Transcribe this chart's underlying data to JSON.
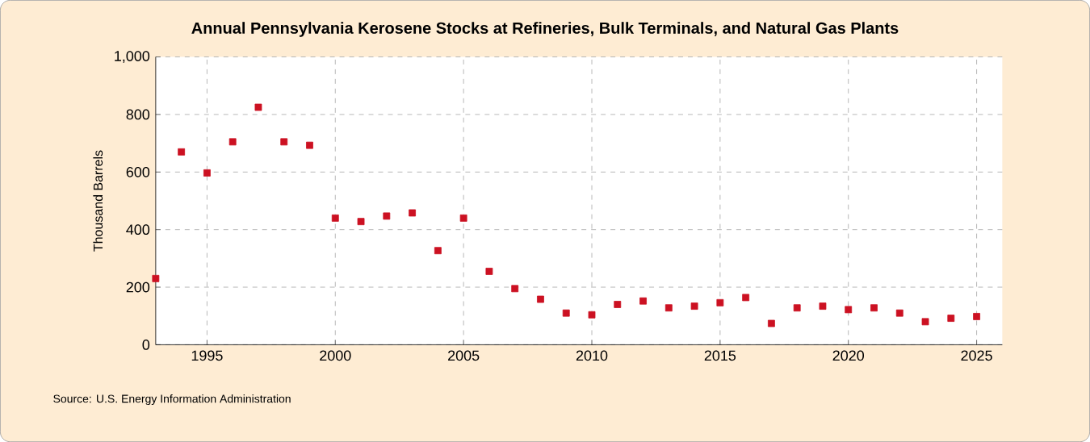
{
  "chart_data": {
    "type": "scatter",
    "title": "Annual Pennsylvania Kerosene Stocks at Refineries, Bulk Terminals, and Natural Gas Plants",
    "ylabel": "Thousand Barrels",
    "annotations": [
      "Source: U.S. Energy Information Administration"
    ],
    "x": [
      1993,
      1994,
      1995,
      1996,
      1997,
      1998,
      1999,
      2000,
      2001,
      2002,
      2003,
      2004,
      2005,
      2006,
      2007,
      2008,
      2009,
      2010,
      2011,
      2012,
      2013,
      2014,
      2015,
      2016,
      2017,
      2018,
      2019,
      2020,
      2021,
      2022,
      2023,
      2024,
      2025
    ],
    "series": [
      {
        "color": "#cc1122",
        "values": [
          230,
          670,
          597,
          705,
          825,
          705,
          693,
          440,
          428,
          447,
          458,
          327,
          440,
          255,
          195,
          158,
          110,
          104,
          140,
          152,
          128,
          134,
          146,
          164,
          74,
          128,
          134,
          122,
          128,
          110,
          80,
          92,
          98
        ]
      }
    ],
    "xlim": [
      1993,
      2026
    ],
    "ylim": [
      0,
      1000
    ],
    "xticks": [
      1995,
      2000,
      2005,
      2010,
      2015,
      2020,
      2025
    ],
    "yticks": [
      0,
      200,
      400,
      600,
      800,
      {
        "value": 1000,
        "label": "1,000"
      }
    ],
    "grid": true,
    "marker": "square"
  }
}
